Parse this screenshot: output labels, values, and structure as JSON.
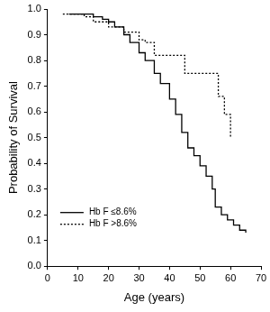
{
  "chart_data": {
    "type": "line",
    "x_label": "Age (years)",
    "y_label": "Probability of Survival",
    "xlim": [
      0,
      70
    ],
    "xticks": [
      0,
      10,
      20,
      30,
      40,
      50,
      60,
      70
    ],
    "ylim": [
      0,
      1
    ],
    "yticks": [
      {
        "value": 0,
        "label": "0.0"
      },
      0.1,
      0.2,
      0.3,
      0.4,
      0.5,
      0.6,
      0.7,
      0.8,
      0.9,
      {
        "value": 1,
        "label": "1.0"
      }
    ],
    "grid": false,
    "legend": "lower left",
    "series": [
      {
        "name": "Hb F ≤8.6%",
        "color": "#000000",
        "line_style": "solid",
        "x": [
          7,
          10,
          15,
          18,
          20,
          22,
          25,
          27,
          30,
          32,
          35,
          37,
          40,
          42,
          44,
          46,
          48,
          50,
          52,
          54,
          55,
          57,
          59,
          61,
          63,
          65
        ],
        "values": [
          0.98,
          0.98,
          0.97,
          0.96,
          0.95,
          0.93,
          0.9,
          0.87,
          0.83,
          0.8,
          0.75,
          0.71,
          0.65,
          0.59,
          0.52,
          0.46,
          0.43,
          0.39,
          0.35,
          0.3,
          0.23,
          0.2,
          0.18,
          0.16,
          0.14,
          0.13
        ]
      },
      {
        "name": "Hb F >8.6%",
        "color": "#000000",
        "line_style": "dotted",
        "x": [
          5,
          12,
          15,
          20,
          25,
          30,
          32,
          35,
          44,
          45,
          55,
          56,
          58,
          60
        ],
        "values": [
          0.98,
          0.97,
          0.95,
          0.93,
          0.91,
          0.88,
          0.87,
          0.82,
          0.82,
          0.75,
          0.75,
          0.66,
          0.59,
          0.5
        ]
      }
    ]
  }
}
